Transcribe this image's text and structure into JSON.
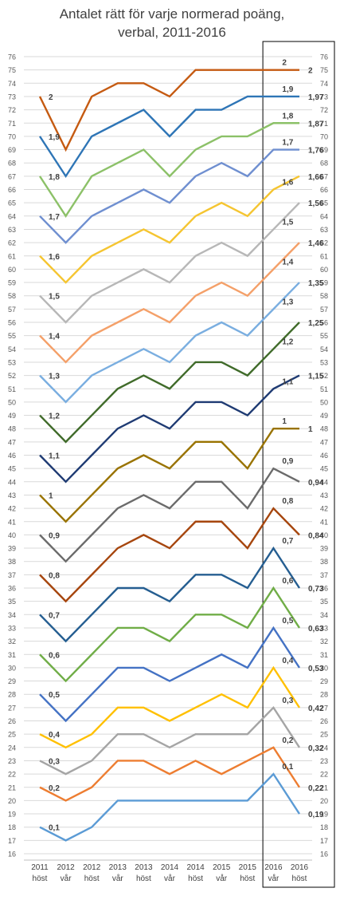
{
  "chart_data": {
    "type": "line",
    "title_lines": [
      "Antalet rätt för varje normerad poäng,",
      "verbal, 2011-2016"
    ],
    "categories": [
      {
        "year": "2011",
        "term": "höst"
      },
      {
        "year": "2012",
        "term": "vår"
      },
      {
        "year": "2012",
        "term": "höst"
      },
      {
        "year": "2013",
        "term": "vår"
      },
      {
        "year": "2013",
        "term": "höst"
      },
      {
        "year": "2014",
        "term": "vår"
      },
      {
        "year": "2014",
        "term": "höst"
      },
      {
        "year": "2015",
        "term": "vår"
      },
      {
        "year": "2015",
        "term": "höst"
      },
      {
        "year": "2016",
        "term": "vår"
      },
      {
        "year": "2016",
        "term": "höst"
      }
    ],
    "y_ticks": [
      16,
      17,
      18,
      19,
      20,
      21,
      22,
      23,
      24,
      25,
      26,
      27,
      28,
      29,
      30,
      31,
      32,
      33,
      34,
      35,
      36,
      37,
      38,
      39,
      40,
      41,
      42,
      43,
      44,
      45,
      46,
      47,
      48,
      49,
      50,
      51,
      52,
      53,
      54,
      55,
      56,
      57,
      58,
      59,
      60,
      61,
      62,
      63,
      64,
      65,
      66,
      67,
      68,
      69,
      70,
      71,
      72,
      73,
      74,
      75,
      76
    ],
    "ylim": [
      16,
      76
    ],
    "grid": true,
    "secondary_y_axis": true,
    "highlight_box": "last two categories",
    "series": [
      {
        "name": "2",
        "color": "#c55a11",
        "values": [
          73,
          69,
          73,
          74,
          74,
          73,
          75,
          75,
          75,
          75,
          75
        ]
      },
      {
        "name": "1,9",
        "color": "#2e75b6",
        "values": [
          70,
          67,
          70,
          71,
          72,
          70,
          72,
          72,
          73,
          73,
          73
        ]
      },
      {
        "name": "1,8",
        "color": "#8cc168",
        "values": [
          67,
          64,
          67,
          68,
          69,
          67,
          69,
          70,
          70,
          71,
          71
        ]
      },
      {
        "name": "1,7",
        "color": "#6f8fd0",
        "values": [
          64,
          62,
          64,
          65,
          66,
          65,
          67,
          68,
          67,
          69,
          69
        ]
      },
      {
        "name": "1,6",
        "color": "#f5c531",
        "values": [
          61,
          59,
          61,
          62,
          63,
          62,
          64,
          65,
          64,
          66,
          67
        ]
      },
      {
        "name": "1,5",
        "color": "#b7b7b7",
        "values": [
          58,
          56,
          58,
          59,
          60,
          59,
          61,
          62,
          61,
          63,
          65
        ]
      },
      {
        "name": "1,4",
        "color": "#f4a069",
        "values": [
          55,
          53,
          55,
          56,
          57,
          56,
          58,
          59,
          58,
          60,
          62
        ]
      },
      {
        "name": "1,3",
        "color": "#7aaee0",
        "values": [
          52,
          50,
          52,
          53,
          54,
          53,
          55,
          56,
          55,
          57,
          59
        ]
      },
      {
        "name": "1,2",
        "color": "#406b2a",
        "values": [
          49,
          47,
          49,
          51,
          52,
          51,
          53,
          53,
          52,
          54,
          56
        ]
      },
      {
        "name": "1,1",
        "color": "#1f3b73",
        "values": [
          46,
          44,
          46,
          48,
          49,
          48,
          50,
          50,
          49,
          51,
          52
        ]
      },
      {
        "name": "1",
        "color": "#997300",
        "values": [
          43,
          41,
          43,
          45,
          46,
          45,
          47,
          47,
          45,
          48,
          48
        ]
      },
      {
        "name": "0,9",
        "color": "#6b6b6b",
        "values": [
          40,
          38,
          40,
          42,
          43,
          42,
          44,
          44,
          42,
          45,
          44
        ]
      },
      {
        "name": "0,8",
        "color": "#a6460e",
        "values": [
          37,
          35,
          37,
          39,
          40,
          39,
          41,
          41,
          39,
          42,
          40
        ]
      },
      {
        "name": "0,7",
        "color": "#255e91",
        "values": [
          34,
          32,
          34,
          36,
          36,
          35,
          37,
          37,
          36,
          39,
          36
        ]
      },
      {
        "name": "0,6",
        "color": "#70ad47",
        "values": [
          31,
          29,
          31,
          33,
          33,
          32,
          34,
          34,
          33,
          36,
          33
        ]
      },
      {
        "name": "0,5",
        "color": "#4472c4",
        "values": [
          28,
          26,
          28,
          30,
          30,
          29,
          30,
          31,
          30,
          33,
          30
        ]
      },
      {
        "name": "0,4",
        "color": "#ffc000",
        "values": [
          25,
          24,
          25,
          27,
          27,
          26,
          27,
          28,
          27,
          30,
          27
        ]
      },
      {
        "name": "0,3",
        "color": "#a5a5a5",
        "values": [
          23,
          22,
          23,
          25,
          25,
          24,
          25,
          25,
          25,
          27,
          24
        ]
      },
      {
        "name": "0,2",
        "color": "#ed7d31",
        "values": [
          21,
          20,
          21,
          23,
          23,
          22,
          23,
          22,
          23,
          24,
          21
        ]
      },
      {
        "name": "0,1",
        "color": "#5b9bd5",
        "values": [
          18,
          17,
          18,
          20,
          20,
          20,
          20,
          20,
          20,
          22,
          19
        ]
      }
    ],
    "end_labels": [
      "2",
      "1,97",
      "1,87",
      "1,76",
      "1,66",
      "1,56",
      "1,46",
      "1,35",
      "1,25",
      "1,15",
      "1",
      "0,94",
      "0,84",
      "0,73",
      "0,63",
      "0,53",
      "0,42",
      "0,32",
      "0,22",
      "0,19"
    ],
    "end_value_labels": [
      "3",
      "1",
      "9",
      "",
      "7",
      "5",
      "2",
      "9",
      "6",
      "2",
      "48",
      "4",
      "0",
      "6",
      "3",
      "0",
      "7",
      "4",
      "1",
      ""
    ]
  }
}
